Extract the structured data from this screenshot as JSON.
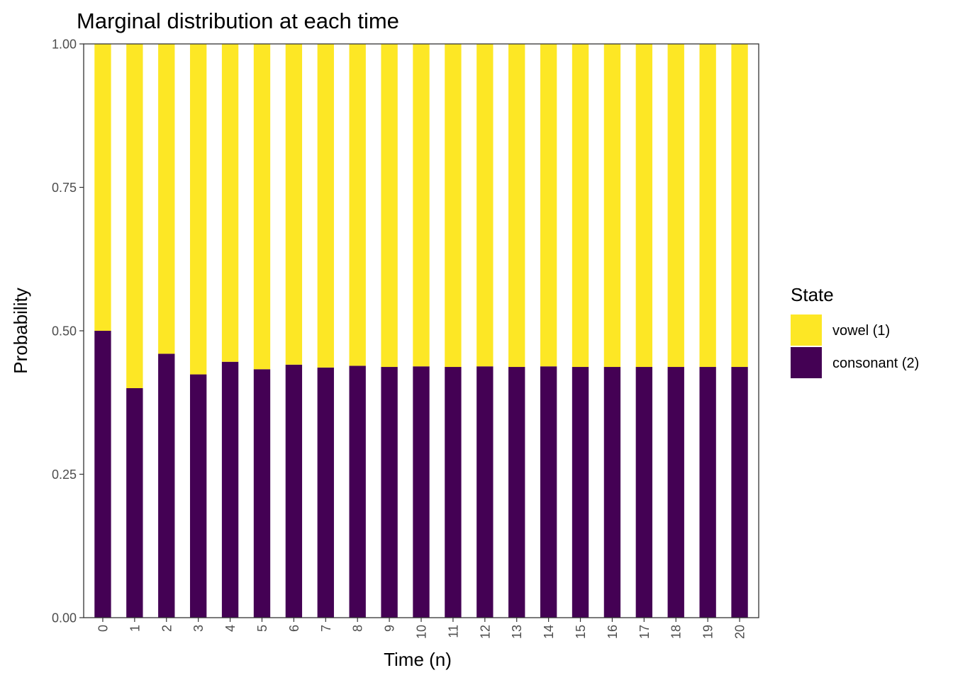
{
  "chart_data": {
    "type": "bar",
    "stacked": true,
    "title": "Marginal distribution at each time",
    "xlabel": "Time (n)",
    "ylabel": "Probability",
    "ylim": [
      0,
      1
    ],
    "yticks": [
      "0.00",
      "0.25",
      "0.50",
      "0.75",
      "1.00"
    ],
    "ytick_values": [
      0,
      0.25,
      0.5,
      0.75,
      1.0
    ],
    "categories": [
      "0",
      "1",
      "2",
      "3",
      "4",
      "5",
      "6",
      "7",
      "8",
      "9",
      "10",
      "11",
      "12",
      "13",
      "14",
      "15",
      "16",
      "17",
      "18",
      "19",
      "20"
    ],
    "series": [
      {
        "name": "consonant (2)",
        "color": "#440154",
        "values": [
          0.5,
          0.4,
          0.46,
          0.424,
          0.446,
          0.433,
          0.441,
          0.436,
          0.439,
          0.437,
          0.438,
          0.437,
          0.438,
          0.437,
          0.438,
          0.437,
          0.437,
          0.437,
          0.437,
          0.437,
          0.437
        ]
      },
      {
        "name": "vowel (1)",
        "color": "#FDE725",
        "values": [
          0.5,
          0.6,
          0.54,
          0.576,
          0.554,
          0.567,
          0.559,
          0.564,
          0.561,
          0.563,
          0.562,
          0.563,
          0.562,
          0.563,
          0.562,
          0.563,
          0.563,
          0.563,
          0.563,
          0.563,
          0.563
        ]
      }
    ],
    "legend": {
      "title": "State",
      "position": "right",
      "entries": [
        {
          "label": "vowel (1)",
          "color": "#FDE725"
        },
        {
          "label": "consonant (2)",
          "color": "#440154"
        }
      ]
    },
    "grid": false
  }
}
